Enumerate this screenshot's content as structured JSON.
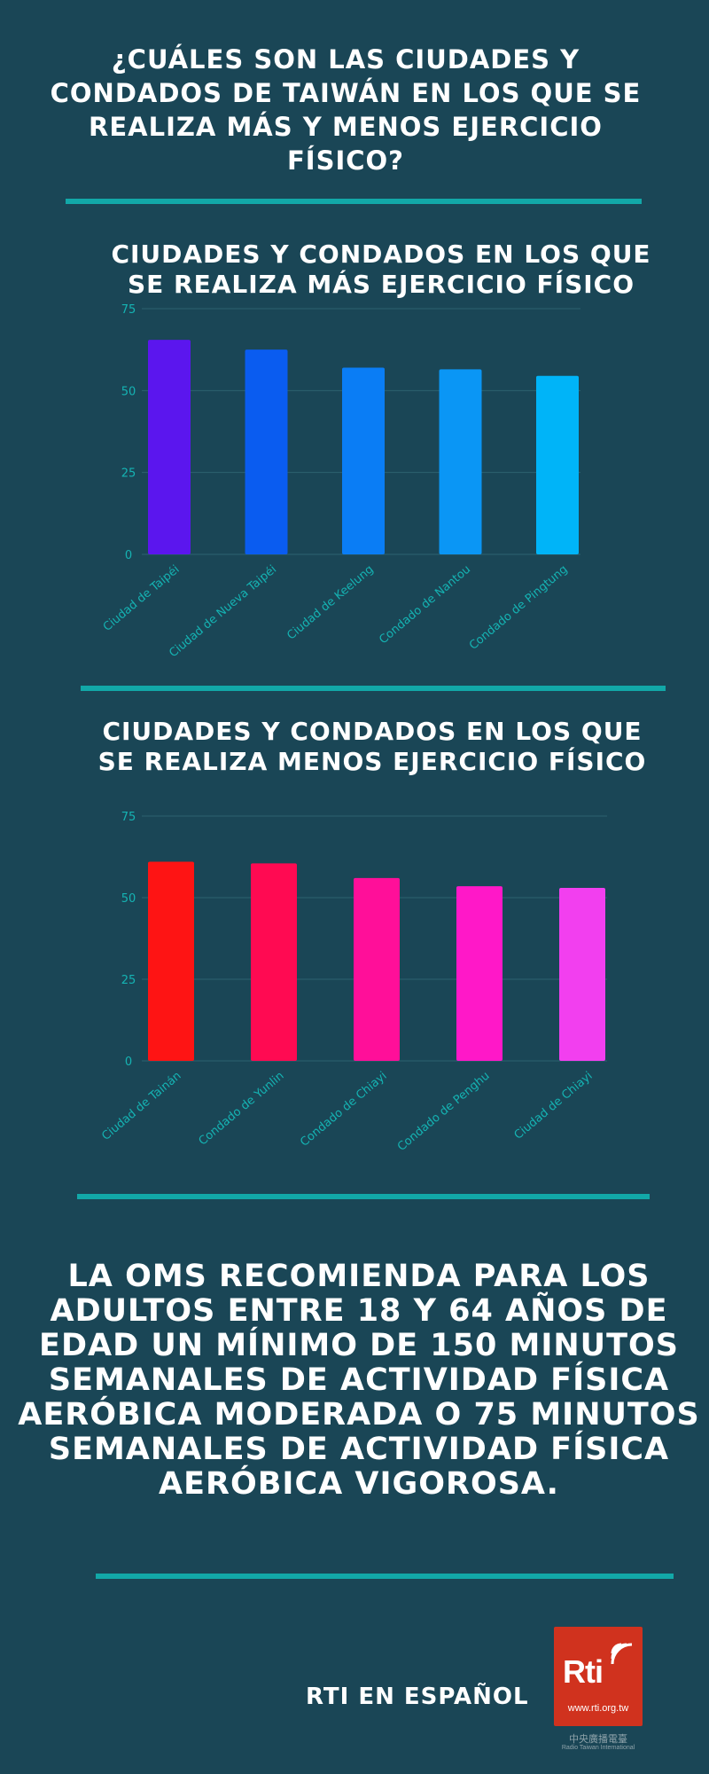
{
  "title": "¿CUÁLES SON LAS CIUDADES Y CONDADOS DE TAIWÁN EN LOS QUE SE REALIZA MÁS Y MENOS EJERCICIO FÍSICO?",
  "chart_data": [
    {
      "type": "bar",
      "title": "CIUDADES Y CONDADOS EN LOS QUE SE REALIZA MÁS EJERCICIO FÍSICO",
      "categories": [
        "Ciudad de Taipéi",
        "Ciudad de Nueva Taipéi",
        "Ciudad de Keelung",
        "Condado de Nantou",
        "Condado de Pingtung"
      ],
      "values": [
        65.5,
        62.5,
        57,
        56.5,
        54.5
      ],
      "colors": [
        "#5b16ee",
        "#0a5cf0",
        "#0a7df5",
        "#0a96f5",
        "#00b4f8"
      ],
      "yticks": [
        0,
        25,
        50,
        75
      ],
      "ylim": [
        0,
        75
      ],
      "grid": true
    },
    {
      "type": "bar",
      "title": "CIUDADES Y CONDADOS EN LOS QUE SE REALIZA MENOS EJERCICIO FÍSICO",
      "categories": [
        "Ciudad de Tainán",
        "Condado de Yunlin",
        "Condado de Chiayi",
        "Condado de Penghu",
        "Ciudad de Chiayi"
      ],
      "values": [
        61,
        60.5,
        56,
        53.5,
        53
      ],
      "colors": [
        "#fe1414",
        "#ff0a52",
        "#ff0f99",
        "#ff18c8",
        "#f23fef"
      ],
      "yticks": [
        0,
        25,
        50,
        75
      ],
      "ylim": [
        0,
        75
      ],
      "grid": true
    }
  ],
  "message": "LA OMS RECOMIENDA PARA LOS ADULTOS ENTRE 18 Y 64 AÑOS DE EDAD UN MÍNIMO DE 150 MINUTOS SEMANALES DE ACTIVIDAD FÍSICA AERÓBICA MODERADA O 75 MINUTOS SEMANALES DE ACTIVIDAD FÍSICA AERÓBICA VIGOROSA.",
  "footer": {
    "label": "RTI EN ESPAÑOL",
    "logo_text": "Rti",
    "logo_url": "www.rti.org.tw",
    "logo_cn": "中央廣播電臺",
    "logo_en": "Radio Taiwan International",
    "logo_color": "#d0321e"
  },
  "colors": {
    "background": "#1a4656",
    "accent": "#12a8a8",
    "tick_text": "#15b3b3"
  }
}
